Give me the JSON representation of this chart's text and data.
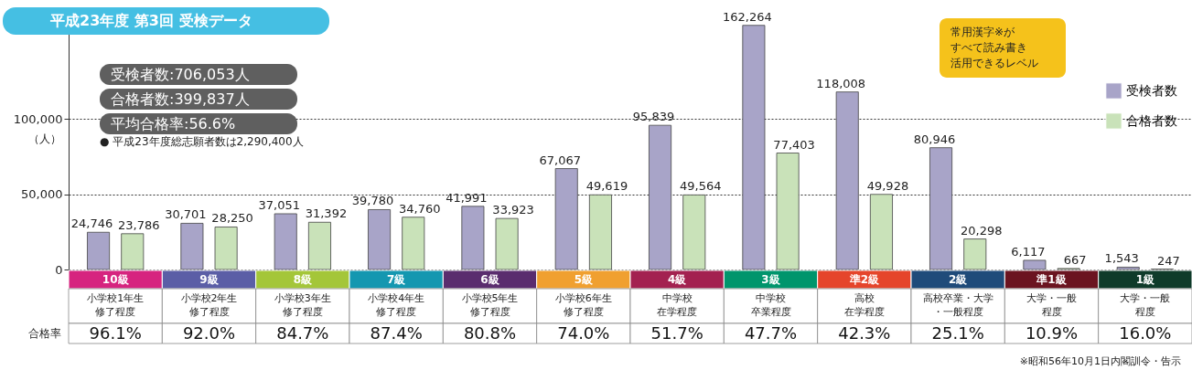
{
  "chart_data": {
    "type": "bar",
    "title": "平成23年度 第3回 受検データ",
    "ylabel": "（人）",
    "categories": [
      "10級",
      "9級",
      "8級",
      "7級",
      "6級",
      "5級",
      "4級",
      "3級",
      "準2級",
      "2級",
      "準1級",
      "1級"
    ],
    "series": [
      {
        "name": "受検者数",
        "color": "#a8a4c8",
        "values": [
          24746,
          30701,
          37051,
          39780,
          41991,
          67067,
          95839,
          162264,
          118008,
          80946,
          6117,
          1543
        ],
        "value_labels": [
          "24,746",
          "30,701",
          "37,051",
          "39,780",
          "41,991",
          "67,067",
          "95,839",
          "162,264",
          "118,008",
          "80,946",
          "6,117",
          "1,543"
        ]
      },
      {
        "name": "合格者数",
        "color": "#c9e2b9",
        "values": [
          23786,
          28250,
          31392,
          34760,
          33923,
          49619,
          49564,
          77403,
          49928,
          20298,
          667,
          247
        ],
        "value_labels": [
          "23,786",
          "28,250",
          "31,392",
          "34,760",
          "33,923",
          "49,619",
          "49,564",
          "77,403",
          "49,928",
          "20,298",
          "667",
          "247"
        ]
      }
    ],
    "ylim": [
      0,
      170000
    ],
    "yticks": [
      0,
      {
        "value": 50000,
        "label": "50,000"
      },
      {
        "value": 100000,
        "label": "100,000"
      }
    ],
    "grid": "y",
    "legend": "top right",
    "annotations": [
      "受検者数:706,053人",
      "合格者数:399,837人",
      "平均合格率:56.6%",
      "● 平成23年度総志願者数は2,290,400人",
      "常用漢字※が",
      "すべて読み書き",
      "活用できるレベル",
      "合格率",
      "※昭和56年10月1日内閣訓令・告示",
      "小学校1年生",
      "修了程度",
      "小学校2年生",
      "修了程度",
      "小学校3年生",
      "修了程度",
      "小学校4年生",
      "修了程度",
      "小学校5年生",
      "修了程度",
      "小学校6年生",
      "修了程度",
      "中学校",
      "在学程度",
      "中学校",
      "卒業程度",
      "高校",
      "在学程度",
      "高校卒業・大学",
      "・一般程度",
      "大学・一般",
      "程度",
      "大学・一般",
      "程度",
      "96.1%",
      "92.0%",
      "84.7%",
      "87.4%",
      "80.8%",
      "74.0%",
      "51.7%",
      "47.7%",
      "42.3%",
      "25.1%",
      "10.9%",
      "16.0%"
    ]
  }
}
